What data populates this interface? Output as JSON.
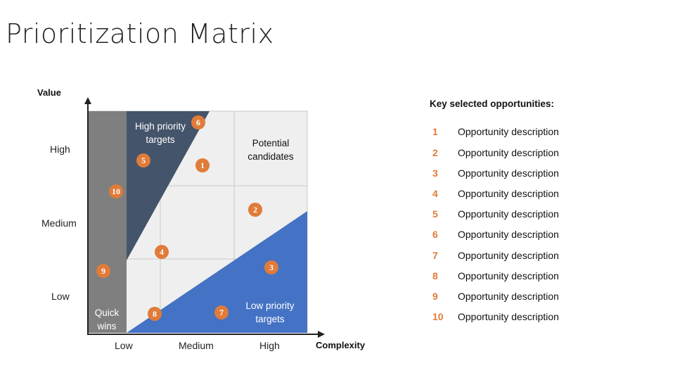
{
  "title": "Prioritization Matrix",
  "axes": {
    "y_title": "Value",
    "x_title": "Complexity",
    "y_ticks": [
      "High",
      "Medium",
      "Low"
    ],
    "x_ticks": [
      "Low",
      "Medium",
      "High"
    ]
  },
  "regions": {
    "high_priority": [
      "High priority",
      "targets"
    ],
    "potential": [
      "Potential",
      "candidates"
    ],
    "low_priority": [
      "Low priority",
      "targets"
    ],
    "quick_wins": [
      "Quick",
      "wins"
    ]
  },
  "colors": {
    "quick_wins": "#7f7f7f",
    "high_priority": "#44546a",
    "low_priority": "#4472c4",
    "potential": "#efefef",
    "badge": "#e07b39"
  },
  "badges": [
    "1",
    "2",
    "3",
    "4",
    "5",
    "6",
    "7",
    "8",
    "9",
    "10"
  ],
  "key": {
    "title": "Key selected opportunities:",
    "items": [
      {
        "num": "1",
        "desc": "Opportunity description"
      },
      {
        "num": "2",
        "desc": "Opportunity description"
      },
      {
        "num": "3",
        "desc": "Opportunity description"
      },
      {
        "num": "4",
        "desc": "Opportunity description"
      },
      {
        "num": "5",
        "desc": "Opportunity description"
      },
      {
        "num": "6",
        "desc": "Opportunity description"
      },
      {
        "num": "7",
        "desc": "Opportunity description"
      },
      {
        "num": "8",
        "desc": "Opportunity description"
      },
      {
        "num": "9",
        "desc": "Opportunity description"
      },
      {
        "num": "10",
        "desc": "Opportunity description"
      }
    ]
  }
}
